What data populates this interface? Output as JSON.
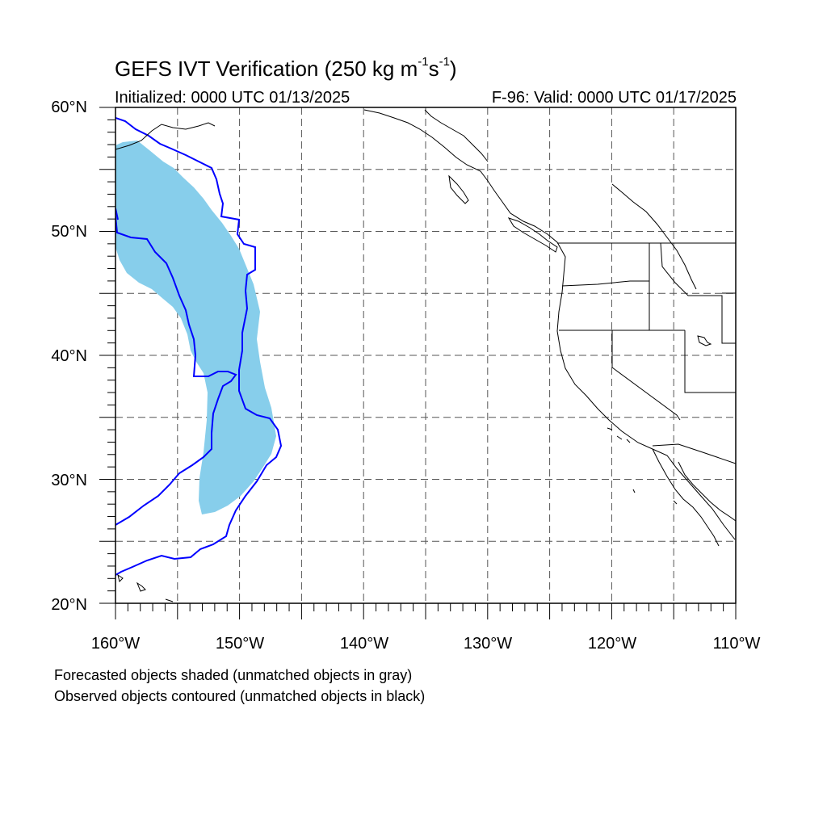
{
  "title": {
    "main": "GEFS IVT Verification (250 kg m",
    "sup1": "-1",
    "mid": "s",
    "sup2": "-1",
    "close": ")"
  },
  "initialized": "Initialized: 0000 UTC 01/13/2025",
  "valid": "F-96: Valid: 0000 UTC 01/17/2025",
  "lat_labels": [
    "60°N",
    "50°N",
    "40°N",
    "30°N",
    "20°N"
  ],
  "lon_labels": [
    "160°W",
    "150°W",
    "140°W",
    "130°W",
    "120°W",
    "110°W"
  ],
  "map_extent": {
    "lon": [
      -160,
      -110
    ],
    "lat": [
      20,
      60
    ]
  },
  "colors": {
    "forecast_fill": "#87ceeb",
    "observed_contour": "#0000ff",
    "coastline": "#000000",
    "grid": "#555555"
  },
  "notes": [
    "Forecasted objects shaded (unmatched objects in gray)",
    "Observed objects contoured (unmatched objects in black)"
  ]
}
